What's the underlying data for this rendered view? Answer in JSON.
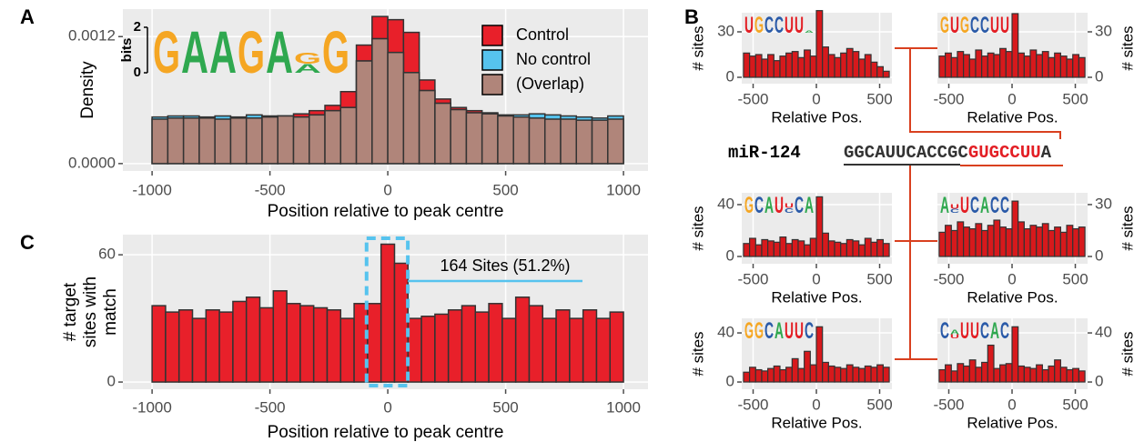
{
  "panel_labels": [
    "A",
    "B",
    "C"
  ],
  "logo_colors": {
    "A": "#2fa84f",
    "C": "#2a5aa8",
    "G": "#f5a623",
    "U": "#e31e24"
  },
  "sequence": {
    "label": "miR-124",
    "parts": [
      {
        "text": "GGCAUUCACCGC",
        "color": "#333333"
      },
      {
        "text": "GUGCCUU",
        "color": "#e31e24"
      },
      {
        "text": "A",
        "color": "#333333"
      }
    ]
  },
  "chart_data": [
    {
      "type": "histogram",
      "bins": [
        -1000,
        -933.333,
        -866.667,
        -800,
        -733.333,
        -666.667,
        -600,
        -533.333,
        -466.667,
        -400,
        -333.333,
        -266.667,
        -200,
        -133.333,
        -66.667,
        0,
        66.667,
        133.333,
        200,
        266.667,
        333.333,
        400,
        466.667,
        533.333,
        600,
        666.667,
        733.333,
        800,
        866.667,
        933.333,
        1000
      ],
      "series": [
        {
          "name": "Control",
          "color": "#e8202a",
          "values": [
            0.00042,
            0.00043,
            0.00043,
            0.00043,
            0.00042,
            0.00043,
            0.00043,
            0.00044,
            0.00045,
            0.00047,
            0.0005,
            0.00055,
            0.00068,
            0.00112,
            0.00139,
            0.00136,
            0.00124,
            0.00079,
            0.00061,
            0.00053,
            0.0005,
            0.00047,
            0.00045,
            0.00044,
            0.00043,
            0.00042,
            0.00042,
            0.00041,
            0.00041,
            0.00042
          ]
        },
        {
          "name": "No control",
          "color": "#56c3ee",
          "values": [
            0.00044,
            0.00045,
            0.00045,
            0.00044,
            0.00045,
            0.00044,
            0.00046,
            0.00045,
            0.00045,
            0.00044,
            0.00046,
            0.0005,
            0.00053,
            0.00097,
            0.00118,
            0.00105,
            0.00086,
            0.00069,
            0.00057,
            0.00051,
            0.00048,
            0.00048,
            0.00046,
            0.00046,
            0.00047,
            0.00046,
            0.00045,
            0.00044,
            0.00043,
            0.00045
          ]
        },
        {
          "name": "(Overlap)",
          "color": "#b0857a",
          "values": [
            0.00042,
            0.00043,
            0.00043,
            0.00043,
            0.00042,
            0.00043,
            0.00043,
            0.00044,
            0.00045,
            0.00044,
            0.00046,
            0.0005,
            0.00053,
            0.00097,
            0.00118,
            0.00105,
            0.00086,
            0.00069,
            0.00057,
            0.00051,
            0.00048,
            0.00047,
            0.00045,
            0.00044,
            0.00043,
            0.00042,
            0.00042,
            0.00041,
            0.00041,
            0.00042
          ]
        }
      ],
      "xlim": [
        -1124,
        1104
      ],
      "xticks": [
        -1000,
        -500,
        0,
        500,
        1000
      ],
      "ylim": [
        -7e-05,
        0.00146
      ],
      "yticks": [
        {
          "value": 0,
          "label": "0.0000"
        },
        {
          "value": 0.0012,
          "label": "0.0012"
        }
      ],
      "x_label": "Position relative to peak centre",
      "y_label": "Density",
      "legend": "top-right",
      "grid": true,
      "y_axis_side": "left",
      "logo": {
        "y_label": "bits",
        "yticks": [
          0,
          2
        ],
        "columns": [
          {
            "letters": [
              "G"
            ],
            "heights": [
              1.9
            ]
          },
          {
            "letters": [
              "A"
            ],
            "heights": [
              1.9
            ]
          },
          {
            "letters": [
              "A"
            ],
            "heights": [
              1.9
            ]
          },
          {
            "letters": [
              "G"
            ],
            "heights": [
              1.9
            ]
          },
          {
            "letters": [
              "A"
            ],
            "heights": [
              1.9
            ]
          },
          {
            "letters": [
              "G",
              "A"
            ],
            "heights": [
              0.5,
              0.4
            ]
          },
          {
            "letters": [
              "G"
            ],
            "heights": [
              1.9
            ]
          }
        ]
      }
    },
    {
      "type": "histogram",
      "bins": [
        -1000,
        -942.857,
        -885.714,
        -828.571,
        -771.429,
        -714.286,
        -657.143,
        -600,
        -542.857,
        -485.714,
        -428.571,
        -371.429,
        -314.286,
        -257.143,
        -200,
        -142.857,
        -85.714,
        -28.571,
        28.571,
        85.714,
        142.857,
        200,
        257.143,
        314.286,
        371.429,
        428.571,
        485.714,
        542.857,
        600,
        657.143,
        714.286,
        771.429,
        828.571,
        885.714,
        942.857,
        1000
      ],
      "values": [
        36,
        33,
        34,
        30,
        34,
        33,
        38,
        40,
        35,
        43,
        37,
        36,
        35,
        34,
        30,
        37,
        37,
        65,
        56,
        30,
        31,
        32,
        34,
        36,
        33,
        37,
        30,
        40,
        36,
        30,
        34,
        30,
        34,
        30,
        33
      ],
      "color": "#e8202a",
      "xlim": [
        -1124,
        1104
      ],
      "xticks": [
        -1000,
        -500,
        0,
        500,
        1000
      ],
      "ylim": [
        -3.4,
        69.5
      ],
      "yticks": [
        0,
        60
      ],
      "x_label": "Position relative to peak centre",
      "y_label": [
        "# target",
        "sites with",
        "match"
      ],
      "grid": true,
      "y_axis_side": "left",
      "highlight_x": [
        -90,
        85
      ],
      "annotation": "164 Sites (51.2%)"
    },
    {
      "type": "histogram",
      "bins": [
        -576,
        -528,
        -480,
        -432,
        -384,
        -336,
        -288,
        -240,
        -192,
        -144,
        -96,
        -48,
        0,
        48,
        96,
        144,
        192,
        240,
        288,
        336,
        384,
        432,
        480,
        528,
        576
      ],
      "values": [
        16,
        14,
        15,
        12,
        15,
        11,
        14,
        16,
        17,
        13,
        18,
        14,
        44,
        20,
        15,
        13,
        16,
        19,
        17,
        12,
        15,
        10,
        7,
        4
      ],
      "color": "#d7191c",
      "xlim": [
        -590,
        597
      ],
      "xticks": [
        -500,
        0,
        500
      ],
      "ylim": [
        -4.2,
        42.6
      ],
      "yticks": [
        0,
        30
      ],
      "x_label": "Relative Pos.",
      "y_label": "# sites",
      "grid": true,
      "y_axis_side": "left",
      "logo": {
        "columns": [
          {
            "letters": [
              "U"
            ],
            "heights": [
              2
            ]
          },
          {
            "letters": [
              "G"
            ],
            "heights": [
              2
            ]
          },
          {
            "letters": [
              "C"
            ],
            "heights": [
              2
            ]
          },
          {
            "letters": [
              "C"
            ],
            "heights": [
              2
            ]
          },
          {
            "letters": [
              "U"
            ],
            "heights": [
              2
            ]
          },
          {
            "letters": [
              "U"
            ],
            "heights": [
              2
            ]
          },
          {
            "letters": [
              "A"
            ],
            "heights": [
              0.3
            ]
          }
        ]
      }
    },
    {
      "type": "histogram",
      "bins": [
        -576,
        -528,
        -480,
        -432,
        -384,
        -336,
        -288,
        -240,
        -192,
        -144,
        -96,
        -48,
        0,
        48,
        96,
        144,
        192,
        240,
        288,
        336,
        384,
        432,
        480,
        528,
        576
      ],
      "values": [
        14,
        16,
        13,
        17,
        15,
        12,
        18,
        14,
        16,
        15,
        19,
        17,
        42,
        16,
        14,
        18,
        15,
        17,
        13,
        16,
        14,
        12,
        15,
        13
      ],
      "color": "#d7191c",
      "xlim": [
        -590,
        597
      ],
      "xticks": [
        -500,
        0,
        500
      ],
      "ylim": [
        -4.2,
        42.6
      ],
      "yticks": [
        0,
        30
      ],
      "x_label": "Relative Pos.",
      "y_label": "# sites",
      "grid": true,
      "y_axis_side": "right",
      "logo": {
        "columns": [
          {
            "letters": [
              "G"
            ],
            "heights": [
              2
            ]
          },
          {
            "letters": [
              "U"
            ],
            "heights": [
              2
            ]
          },
          {
            "letters": [
              "G"
            ],
            "heights": [
              2
            ]
          },
          {
            "letters": [
              "C"
            ],
            "heights": [
              2
            ]
          },
          {
            "letters": [
              "C"
            ],
            "heights": [
              2
            ]
          },
          {
            "letters": [
              "U"
            ],
            "heights": [
              2
            ]
          },
          {
            "letters": [
              "U"
            ],
            "heights": [
              2
            ]
          }
        ]
      }
    },
    {
      "type": "histogram",
      "bins": [
        -576,
        -528,
        -480,
        -432,
        -384,
        -336,
        -288,
        -240,
        -192,
        -144,
        -96,
        -48,
        0,
        48,
        96,
        144,
        192,
        240,
        288,
        336,
        384,
        432,
        480,
        528,
        576
      ],
      "values": [
        10,
        14,
        9,
        13,
        12,
        11,
        15,
        10,
        13,
        12,
        9,
        14,
        46,
        18,
        12,
        11,
        10,
        13,
        12,
        9,
        14,
        11,
        13,
        10
      ],
      "color": "#d7191c",
      "xlim": [
        -590,
        597
      ],
      "xticks": [
        -500,
        0,
        500
      ],
      "ylim": [
        -5.6,
        49.1
      ],
      "yticks": [
        0,
        40
      ],
      "x_label": "Relative Pos.",
      "y_label": "# sites",
      "grid": true,
      "y_axis_side": "left",
      "logo": {
        "columns": [
          {
            "letters": [
              "G"
            ],
            "heights": [
              2
            ]
          },
          {
            "letters": [
              "C"
            ],
            "heights": [
              2
            ]
          },
          {
            "letters": [
              "A"
            ],
            "heights": [
              2
            ]
          },
          {
            "letters": [
              "U"
            ],
            "heights": [
              2
            ]
          },
          {
            "letters": [
              "U",
              "C"
            ],
            "heights": [
              0.6,
              0.6
            ]
          },
          {
            "letters": [
              "C"
            ],
            "heights": [
              2
            ]
          },
          {
            "letters": [
              "A"
            ],
            "heights": [
              2
            ]
          }
        ]
      }
    },
    {
      "type": "histogram",
      "bins": [
        -576,
        -528,
        -480,
        -432,
        -384,
        -336,
        -288,
        -240,
        -192,
        -144,
        -96,
        -48,
        0,
        48,
        96,
        144,
        192,
        240,
        288,
        336,
        384,
        432,
        480,
        528,
        576
      ],
      "values": [
        14,
        18,
        15,
        20,
        17,
        16,
        19,
        15,
        18,
        21,
        17,
        16,
        32,
        20,
        16,
        18,
        17,
        19,
        15,
        17,
        14,
        18,
        16,
        17
      ],
      "color": "#d7191c",
      "xlim": [
        -590,
        597
      ],
      "xticks": [
        -500,
        0,
        500
      ],
      "ylim": [
        -4.2,
        36.8
      ],
      "yticks": [
        0,
        30
      ],
      "x_label": "Relative Pos.",
      "y_label": "# sites",
      "grid": true,
      "y_axis_side": "right",
      "logo": {
        "columns": [
          {
            "letters": [
              "A"
            ],
            "heights": [
              2
            ]
          },
          {
            "letters": [
              "U",
              "C"
            ],
            "heights": [
              0.6,
              0.5
            ]
          },
          {
            "letters": [
              "U"
            ],
            "heights": [
              2
            ]
          },
          {
            "letters": [
              "C"
            ],
            "heights": [
              2
            ]
          },
          {
            "letters": [
              "A"
            ],
            "heights": [
              2
            ]
          },
          {
            "letters": [
              "C"
            ],
            "heights": [
              2
            ]
          },
          {
            "letters": [
              "C"
            ],
            "heights": [
              2
            ]
          }
        ]
      }
    },
    {
      "type": "histogram",
      "bins": [
        -576,
        -528,
        -480,
        -432,
        -384,
        -336,
        -288,
        -240,
        -192,
        -144,
        -96,
        -48,
        0,
        48,
        96,
        144,
        192,
        240,
        288,
        336,
        384,
        432,
        480,
        528,
        576
      ],
      "values": [
        8,
        12,
        10,
        9,
        11,
        13,
        10,
        12,
        19,
        11,
        25,
        14,
        45,
        16,
        13,
        12,
        11,
        14,
        12,
        11,
        13,
        12,
        14,
        12
      ],
      "color": "#d7191c",
      "xlim": [
        -590,
        597
      ],
      "xticks": [
        -500,
        0,
        500
      ],
      "ylim": [
        -5.9,
        51.9
      ],
      "yticks": [
        0,
        40
      ],
      "x_label": "Relative Pos.",
      "y_label": "# sites",
      "grid": true,
      "y_axis_side": "left",
      "logo": {
        "columns": [
          {
            "letters": [
              "G"
            ],
            "heights": [
              2
            ]
          },
          {
            "letters": [
              "G"
            ],
            "heights": [
              2
            ]
          },
          {
            "letters": [
              "C"
            ],
            "heights": [
              2
            ]
          },
          {
            "letters": [
              "A"
            ],
            "heights": [
              2
            ]
          },
          {
            "letters": [
              "U"
            ],
            "heights": [
              2
            ]
          },
          {
            "letters": [
              "U"
            ],
            "heights": [
              2
            ]
          },
          {
            "letters": [
              "C"
            ],
            "heights": [
              2
            ]
          }
        ]
      }
    },
    {
      "type": "histogram",
      "bins": [
        -576,
        -528,
        -480,
        -432,
        -384,
        -336,
        -288,
        -240,
        -192,
        -144,
        -96,
        -48,
        0,
        48,
        96,
        144,
        192,
        240,
        288,
        336,
        384,
        432,
        480,
        528,
        576
      ],
      "values": [
        10,
        14,
        9,
        15,
        13,
        18,
        12,
        16,
        30,
        11,
        14,
        15,
        45,
        13,
        12,
        11,
        14,
        10,
        13,
        18,
        12,
        10,
        11,
        9
      ],
      "color": "#d7191c",
      "xlim": [
        -590,
        597
      ],
      "xticks": [
        -500,
        0,
        500
      ],
      "ylim": [
        -5.9,
        51.9
      ],
      "yticks": [
        0,
        40
      ],
      "x_label": "Relative Pos.",
      "y_label": "# sites",
      "grid": true,
      "y_axis_side": "right",
      "logo": {
        "columns": [
          {
            "letters": [
              "C"
            ],
            "heights": [
              2
            ]
          },
          {
            "letters": [
              "A",
              "U"
            ],
            "heights": [
              0.6,
              0.5
            ]
          },
          {
            "letters": [
              "U"
            ],
            "heights": [
              2
            ]
          },
          {
            "letters": [
              "U"
            ],
            "heights": [
              2
            ]
          },
          {
            "letters": [
              "C"
            ],
            "heights": [
              2
            ]
          },
          {
            "letters": [
              "A"
            ],
            "heights": [
              2
            ]
          },
          {
            "letters": [
              "C"
            ],
            "heights": [
              2
            ]
          }
        ]
      }
    }
  ]
}
